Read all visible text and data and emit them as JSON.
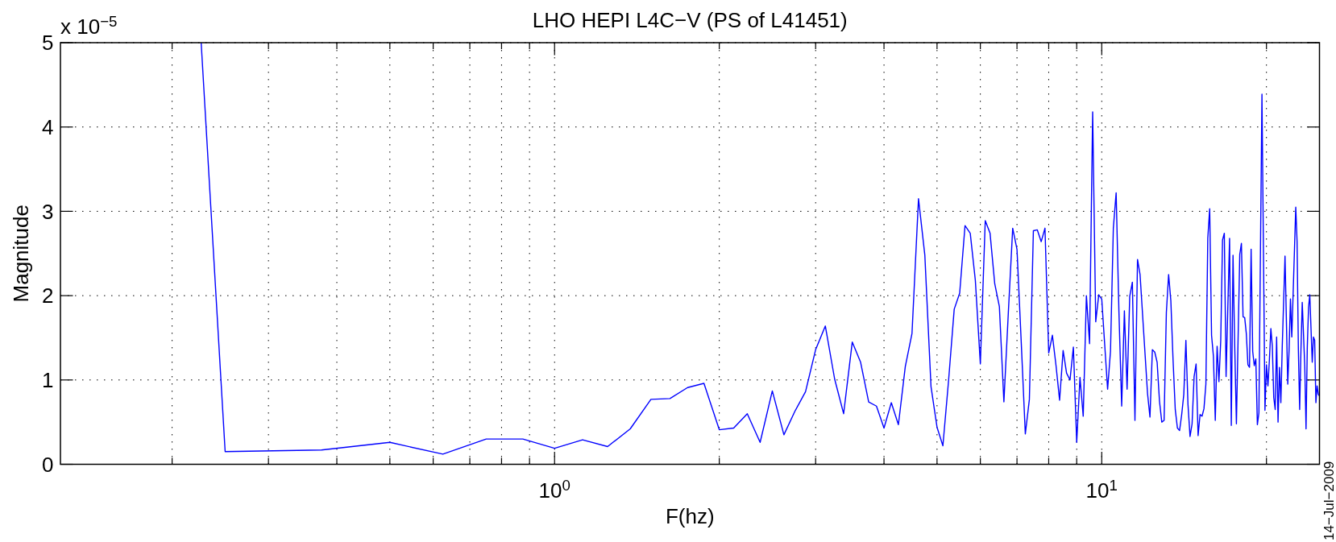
{
  "chart_data": {
    "type": "line",
    "title": "LHO HEPI L4C−V (PS of L41451)",
    "xlabel": "F(hz)",
    "ylabel": "Magnitude",
    "annotations": [
      "x 10$^{−5}$",
      "14−Jul−2009"
    ],
    "log": "x",
    "grid": true,
    "color": "#0000ff",
    "xlim": [
      0.125,
      25
    ],
    "ylim": [
      0,
      5
    ],
    "xticks": [
      {
        "value": 0.2,
        "label": null
      },
      {
        "value": 0.3,
        "label": null
      },
      {
        "value": 0.4,
        "label": null
      },
      {
        "value": 0.5,
        "label": null
      },
      {
        "value": 0.6,
        "label": null
      },
      {
        "value": 0.7,
        "label": null
      },
      {
        "value": 0.8,
        "label": null
      },
      {
        "value": 0.9,
        "label": null
      },
      {
        "value": 1,
        "label": "10$^{0}$"
      },
      {
        "value": 2,
        "label": null
      },
      {
        "value": 3,
        "label": null
      },
      {
        "value": 4,
        "label": null
      },
      {
        "value": 5,
        "label": null
      },
      {
        "value": 6,
        "label": null
      },
      {
        "value": 7,
        "label": null
      },
      {
        "value": 8,
        "label": null
      },
      {
        "value": 9,
        "label": null
      },
      {
        "value": 10,
        "label": "10$^{1}$"
      },
      {
        "value": 20,
        "label": null
      }
    ],
    "yticks": [
      0,
      1,
      2,
      3,
      4,
      5
    ],
    "x": [
      0.226,
      0.25,
      0.375,
      0.5,
      0.625,
      0.75,
      0.875,
      1,
      1.125,
      1.25,
      1.375,
      1.5,
      1.625,
      1.75,
      1.875,
      2,
      2.125,
      2.25,
      2.375,
      2.5,
      2.625,
      2.75,
      2.875,
      3,
      3.125,
      3.25,
      3.375,
      3.5,
      3.625,
      3.75,
      3.875,
      4,
      4.125,
      4.25,
      4.375,
      4.5,
      4.625,
      4.75,
      4.875,
      5,
      5.125,
      5.25,
      5.375,
      5.5,
      5.625,
      5.75,
      5.875,
      6,
      6.125,
      6.25,
      6.375,
      6.5,
      6.625,
      6.75,
      6.875,
      7,
      7.125,
      7.25,
      7.375,
      7.5,
      7.625,
      7.75,
      7.875,
      8,
      8.125,
      8.25,
      8.375,
      8.5,
      8.625,
      8.75,
      8.875,
      9,
      9.125,
      9.25,
      9.375,
      9.5,
      9.625,
      9.75,
      9.875,
      10,
      10.125,
      10.25,
      10.375,
      10.5,
      10.625,
      10.75,
      10.875,
      11,
      11.125,
      11.25,
      11.375,
      11.5,
      11.625,
      11.75,
      12.125,
      12.25,
      12.375,
      12.5,
      12.625,
      12.75,
      12.875,
      13,
      13.125,
      13.25,
      13.375,
      13.5,
      13.625,
      13.75,
      13.875,
      14,
      14.125,
      14.25,
      14.375,
      14.5,
      14.625,
      14.75,
      14.875,
      15,
      15.125,
      15.25,
      15.375,
      15.5,
      15.625,
      15.75,
      15.875,
      16,
      16.125,
      16.25,
      16.375,
      16.5,
      16.625,
      16.75,
      16.875,
      17.125,
      17.25,
      17.375,
      17.5,
      17.625,
      17.875,
      18,
      18.125,
      18.25,
      18.375,
      18.5,
      18.625,
      18.75,
      18.875,
      19,
      19.125,
      19.25,
      19.375,
      19.625,
      19.875,
      20,
      20.125,
      20.25,
      20.375,
      20.5,
      20.625,
      20.75,
      20.875,
      21,
      21.125,
      21.25,
      21.375,
      21.625,
      21.875,
      22,
      22.125,
      22.25,
      22.375,
      22.625,
      22.75,
      22.875,
      23,
      23.125,
      23.25,
      23.5,
      23.625,
      23.75,
      23.875,
      24,
      24.125,
      24.25,
      24.375,
      24.5,
      24.625,
      24.75,
      24.875,
      25
    ],
    "values": [
      5,
      0.15,
      0.17,
      0.26,
      0.12,
      0.3,
      0.3,
      0.19,
      0.29,
      0.21,
      0.42,
      0.77,
      0.78,
      0.91,
      0.96,
      0.41,
      0.43,
      0.6,
      0.26,
      0.87,
      0.35,
      0.63,
      0.86,
      1.36,
      1.64,
      1.01,
      0.6,
      1.45,
      1.21,
      0.74,
      0.69,
      0.43,
      0.73,
      0.47,
      1.16,
      1.55,
      3.15,
      2.48,
      0.92,
      0.44,
      0.22,
      1,
      1.84,
      2.03,
      2.83,
      2.74,
      2.18,
      1.19,
      2.89,
      2.74,
      2.14,
      1.87,
      0.74,
      1.8,
      2.8,
      2.55,
      1.46,
      0.36,
      0.77,
      2.77,
      2.78,
      2.64,
      2.8,
      1.32,
      1.53,
      1.17,
      0.76,
      1.35,
      1.08,
      1,
      1.39,
      0.26,
      1.03,
      0.57,
      2,
      1.43,
      4.18,
      1.69,
      2.01,
      1.96,
      1.42,
      0.89,
      1.34,
      2.8,
      3.22,
      1.81,
      0.69,
      1.82,
      0.89,
      1.99,
      2.16,
      0.52,
      2.43,
      2.25,
      0.84,
      0.56,
      1.36,
      1.33,
      1.21,
      0.75,
      0.5,
      0.52,
      1.8,
      2.25,
      1.94,
      1.24,
      0.65,
      0.43,
      0.4,
      0.59,
      0.83,
      1.47,
      0.71,
      0.33,
      0.48,
      1.04,
      1.19,
      0.34,
      0.59,
      0.57,
      0.66,
      0.95,
      2.68,
      3.03,
      1.53,
      1.28,
      0.52,
      1.4,
      0.98,
      1.47,
      2.66,
      2.74,
      1.04,
      2.68,
      0.46,
      2.48,
      1.4,
      0.48,
      2.49,
      2.62,
      1.75,
      1.74,
      1.55,
      1.18,
      1.15,
      2.55,
      1.34,
      1.17,
      1.25,
      0.47,
      0.61,
      4.39,
      0.64,
      1.18,
      0.93,
      1.24,
      1.61,
      1.4,
      0.79,
      0.65,
      1.51,
      0.5,
      1.15,
      0.73,
      1.4,
      2.47,
      0.95,
      1.36,
      1.96,
      1.51,
      2.02,
      3.05,
      2.64,
      1.36,
      0.65,
      1.36,
      1.92,
      1.16,
      0.42,
      1.39,
      1.86,
      2.01,
      1.61,
      1.21,
      1.51,
      1.47,
      0.73,
      0.93,
      0.83,
      0.81
    ]
  }
}
